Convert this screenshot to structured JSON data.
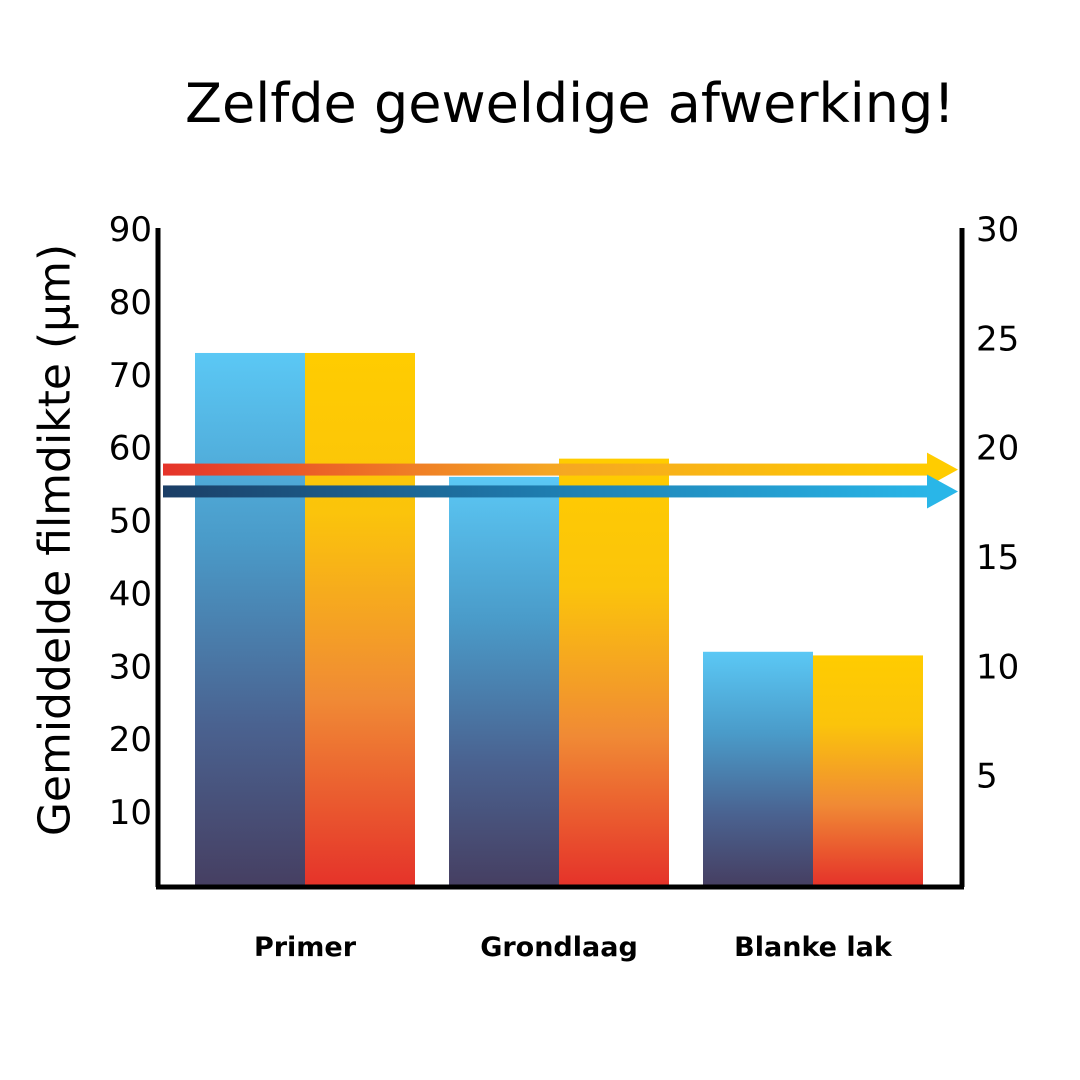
{
  "title": "Zelfde geweldige afwerking!",
  "chart_data": {
    "type": "bar",
    "title": "Zelfde geweldige afwerking!",
    "ylabel": "Gemiddelde filmdikte (µm)",
    "xlabel": "",
    "categories": [
      "Primer",
      "Grondlaag",
      "Blanke lak"
    ],
    "series": [
      {
        "values": [
          73,
          56,
          32
        ],
        "color_top": "#5BC8F5",
        "color_bottom": "#463F62"
      },
      {
        "values": [
          73,
          58.5,
          31.5
        ],
        "color_top": "#FFCC00",
        "color_bottom": "#E5332A"
      }
    ],
    "ylim": [
      0,
      90
    ],
    "yticks": [
      10,
      20,
      30,
      40,
      50,
      60,
      70,
      80,
      90
    ],
    "y2lim": [
      0,
      30
    ],
    "y2ticks": [
      5,
      10,
      15,
      20,
      25,
      30
    ],
    "reference_arrows": [
      {
        "value": 57,
        "color_start": "#E5332A",
        "color_end": "#FFCC00"
      },
      {
        "value": 54,
        "color_start": "#1B3E66",
        "color_end": "#29B6E8"
      }
    ],
    "grid": false
  }
}
